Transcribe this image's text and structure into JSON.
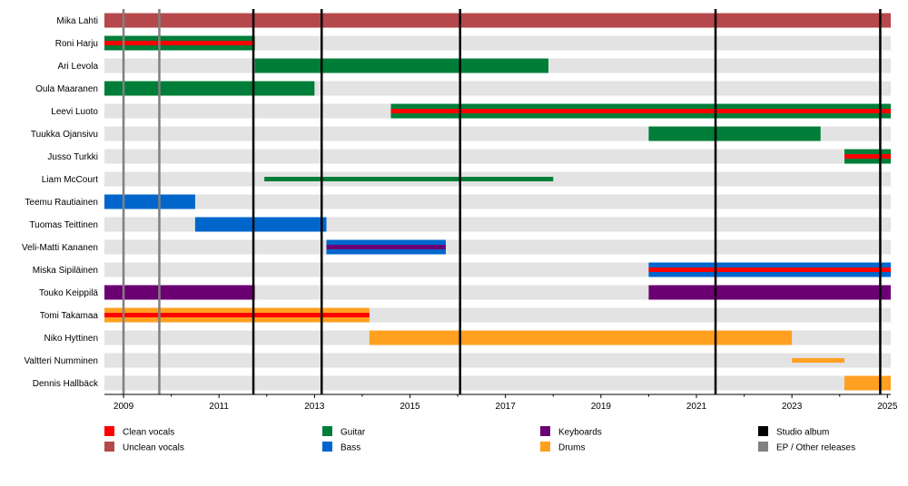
{
  "chart_data": {
    "type": "timeline",
    "title": "",
    "xlim": [
      2008.6,
      2025.07
    ],
    "x_ticks": [
      "2009",
      "2011",
      "2013",
      "2015",
      "2017",
      "2019",
      "2021",
      "2023",
      "2025"
    ],
    "minor_ticks": [
      2010,
      2012,
      2014,
      2016,
      2018,
      2020,
      2022,
      2024
    ],
    "grid": "alternating row bands",
    "colors": {
      "Clean vocals": "#ff0000",
      "Unclean vocals": "#b5484b",
      "Guitar": "#007d38",
      "Bass": "#0066cc",
      "Keyboards": "#6b0073",
      "Drums": "#ffa020",
      "Studio album": "#000000",
      "EP / Other releases": "#808080"
    },
    "legend": [
      {
        "label": "Clean vocals",
        "color": "#ff0000"
      },
      {
        "label": "Unclean vocals",
        "color": "#b5484b"
      },
      {
        "label": "Guitar",
        "color": "#007d38"
      },
      {
        "label": "Bass",
        "color": "#0066cc"
      },
      {
        "label": "Keyboards",
        "color": "#6b0073"
      },
      {
        "label": "Drums",
        "color": "#ffa020"
      },
      {
        "label": "Studio album",
        "color": "#000000"
      },
      {
        "label": "EP / Other releases",
        "color": "#808080"
      }
    ],
    "members": [
      {
        "name": "Mika Lahti",
        "bars": [
          {
            "start": 2008.6,
            "end": 2025.07,
            "role": "Unclean vocals"
          }
        ]
      },
      {
        "name": "Roni Harju",
        "bars": [
          {
            "start": 2008.6,
            "end": 2011.75,
            "role": "Guitar",
            "overlay": "Clean vocals"
          }
        ]
      },
      {
        "name": "Ari Levola",
        "bars": [
          {
            "start": 2011.75,
            "end": 2017.9,
            "role": "Guitar"
          }
        ]
      },
      {
        "name": "Oula Maaranen",
        "bars": [
          {
            "start": 2008.6,
            "end": 2013.0,
            "role": "Guitar"
          }
        ]
      },
      {
        "name": "Leevi Luoto",
        "bars": [
          {
            "start": 2014.6,
            "end": 2025.07,
            "role": "Guitar",
            "overlay": "Clean vocals"
          }
        ]
      },
      {
        "name": "Tuukka Ojansivu",
        "bars": [
          {
            "start": 2020.0,
            "end": 2023.6,
            "role": "Guitar"
          }
        ]
      },
      {
        "name": "Jusso Turkki",
        "bars": [
          {
            "start": 2024.1,
            "end": 2025.07,
            "role": "Guitar",
            "overlay": "Clean vocals"
          }
        ]
      },
      {
        "name": "Liam McCourt",
        "bars": [
          {
            "start": 2011.95,
            "end": 2018.0,
            "role": "Guitar",
            "thin": true
          }
        ]
      },
      {
        "name": "Teemu Rautiainen",
        "bars": [
          {
            "start": 2008.6,
            "end": 2010.5,
            "role": "Bass"
          }
        ]
      },
      {
        "name": "Tuomas Teittinen",
        "bars": [
          {
            "start": 2010.5,
            "end": 2013.25,
            "role": "Bass"
          }
        ]
      },
      {
        "name": "Veli-Matti Kananen",
        "bars": [
          {
            "start": 2013.25,
            "end": 2015.75,
            "role": "Bass",
            "overlay": "Keyboards"
          }
        ]
      },
      {
        "name": "Miska Sipiläinen",
        "bars": [
          {
            "start": 2020.0,
            "end": 2025.07,
            "role": "Bass",
            "overlay": "Clean vocals"
          }
        ]
      },
      {
        "name": "Touko Keippilä",
        "bars": [
          {
            "start": 2008.6,
            "end": 2011.75,
            "role": "Keyboards"
          },
          {
            "start": 2020.0,
            "end": 2025.07,
            "role": "Keyboards"
          }
        ]
      },
      {
        "name": "Tomi Takamaa",
        "bars": [
          {
            "start": 2008.6,
            "end": 2014.15,
            "role": "Drums",
            "overlay": "Clean vocals"
          }
        ]
      },
      {
        "name": "Niko Hyttinen",
        "bars": [
          {
            "start": 2014.15,
            "end": 2023.0,
            "role": "Drums"
          }
        ]
      },
      {
        "name": "Valtteri Numminen",
        "bars": [
          {
            "start": 2023.0,
            "end": 2024.1,
            "role": "Drums",
            "thin": true
          }
        ]
      },
      {
        "name": "Dennis Hallbäck",
        "bars": [
          {
            "start": 2024.1,
            "end": 2025.07,
            "role": "Drums"
          }
        ]
      }
    ],
    "studio_albums": [
      2011.72,
      2013.15,
      2016.05,
      2021.4,
      2024.85
    ],
    "other_releases": [
      2009.0,
      2009.75
    ]
  }
}
